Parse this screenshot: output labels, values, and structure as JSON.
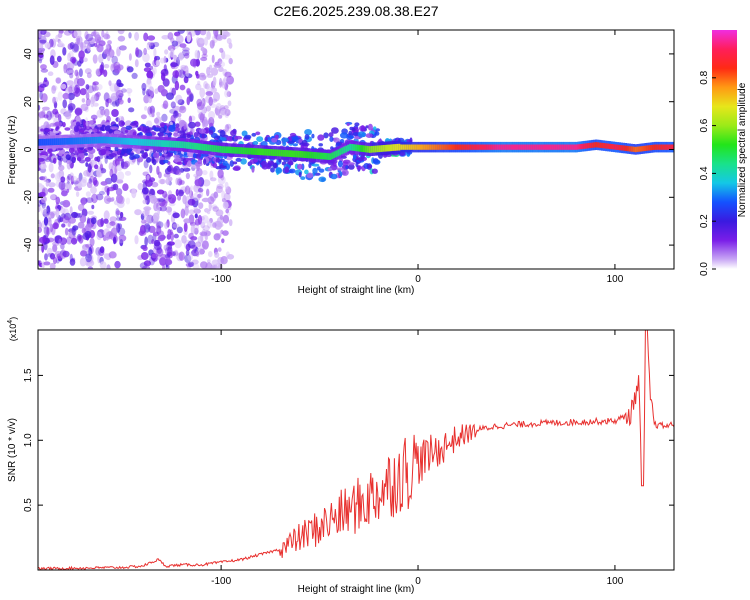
{
  "title": "C2E6.2025.239.08.38.E27",
  "colors": {
    "snr_line": "#e8312f",
    "spectrum_core": "#e8142a",
    "background": "#ffffff"
  },
  "chart_data": [
    {
      "type": "heatmap",
      "title": "C2E6.2025.239.08.38.E27",
      "xlabel": "Height of straight line (km)",
      "ylabel": "Frequency (Hz)",
      "xlim": [
        -193,
        130
      ],
      "ylim": [
        -50,
        50
      ],
      "x_ticks": [
        -100,
        0,
        100
      ],
      "y_ticks": [
        -40,
        -20,
        0,
        20,
        40
      ],
      "colorbar": {
        "label": "Normalized spectral amplitude",
        "range": [
          0,
          1
        ],
        "ticks": [
          "0.0",
          "0.2",
          "0.4",
          "0.6",
          "0.8"
        ],
        "tick_values": [
          0.0,
          0.2,
          0.4,
          0.6,
          0.8
        ],
        "colormap": [
          "#ffffff",
          "#c9a8f5",
          "#7a1ee8",
          "#3a1ae0",
          "#1452ff",
          "#14c8e6",
          "#19e28a",
          "#22e51a",
          "#9bea18",
          "#e7e61a",
          "#ff9a14",
          "#ff2a14",
          "#ff1e5a",
          "#f02de0"
        ]
      },
      "ridge": {
        "description_height_km": [
          -193,
          -160,
          -120,
          -100,
          -80,
          -60,
          -45,
          -35,
          -25,
          -10,
          0,
          20,
          40,
          60,
          80,
          90,
          100,
          110,
          120,
          130
        ],
        "center_frequency_hz": [
          3,
          4,
          2,
          0,
          -1,
          -2,
          -3,
          1,
          0,
          1,
          1,
          1,
          1,
          1,
          1,
          2,
          1,
          0,
          1,
          1
        ],
        "peak_amplitude": [
          0.3,
          0.35,
          0.45,
          0.5,
          0.55,
          0.55,
          0.5,
          0.45,
          0.6,
          0.7,
          0.75,
          0.85,
          0.95,
          0.95,
          0.95,
          0.85,
          0.9,
          0.8,
          0.85,
          0.9
        ]
      }
    },
    {
      "type": "line",
      "xlabel": "Height of straight line (km)",
      "ylabel": "SNR (10 * v/v)",
      "y_multiplier": "(x10^4)",
      "xlim": [
        -193,
        130
      ],
      "ylim": [
        0,
        1.85
      ],
      "x_ticks": [
        -100,
        0,
        100
      ],
      "y_ticks": [
        0.5,
        1.0,
        1.5
      ],
      "series": [
        {
          "name": "SNR",
          "x": [
            -193,
            -170,
            -150,
            -140,
            -132,
            -128,
            -120,
            -110,
            -100,
            -90,
            -80,
            -70,
            -60,
            -50,
            -40,
            -30,
            -20,
            -10,
            0,
            10,
            20,
            30,
            40,
            60,
            80,
            100,
            108,
            112,
            114,
            116,
            118,
            120,
            125,
            130
          ],
          "values": [
            0.01,
            0.015,
            0.02,
            0.03,
            0.08,
            0.03,
            0.04,
            0.04,
            0.06,
            0.08,
            0.12,
            0.16,
            0.25,
            0.33,
            0.42,
            0.5,
            0.6,
            0.72,
            0.83,
            0.92,
            1.02,
            1.08,
            1.11,
            1.13,
            1.14,
            1.15,
            1.2,
            1.45,
            0.65,
            1.8,
            1.35,
            1.12,
            1.11,
            1.12
          ]
        }
      ]
    }
  ]
}
